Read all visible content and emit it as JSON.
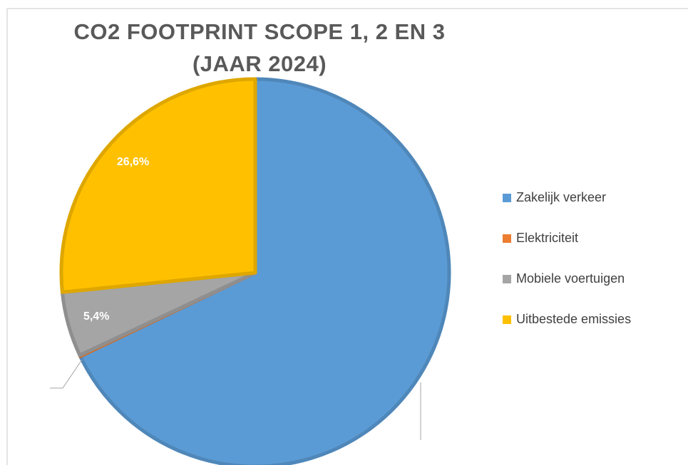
{
  "chart_data": {
    "type": "pie",
    "title": [
      "CO2 FOOTPRINT SCOPE 1, 2 EN 3",
      "(JAAR 2024)"
    ],
    "categories": [
      "Zakelijk verkeer",
      "Elektriciteit",
      "Mobiele voertuigen",
      "Uitbestede emissies"
    ],
    "values": [
      67.9,
      0.1,
      5.4,
      26.6
    ],
    "value_labels": [
      null,
      null,
      "5,4%",
      "26,6%"
    ],
    "colors": [
      "#5b9bd5",
      "#ed7d31",
      "#a5a5a5",
      "#ffc000"
    ],
    "legend": "right"
  }
}
